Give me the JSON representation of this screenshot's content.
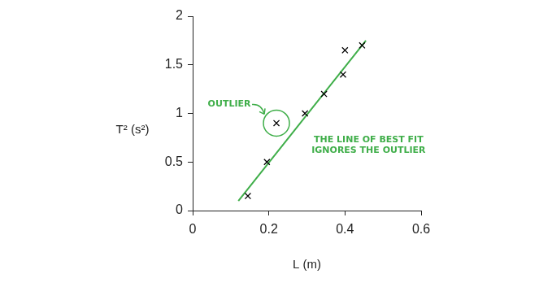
{
  "chart_data": {
    "type": "scatter",
    "x_label": "L (m)",
    "y_label": "T² (s²)",
    "series": [
      {
        "type": "scatter",
        "marker": "x",
        "color": "#000000",
        "x": [
          0.145,
          0.195,
          0.22,
          0.295,
          0.345,
          0.395,
          0.4,
          0.445
        ],
        "values": [
          0.15,
          0.5,
          0.9,
          1.0,
          1.2,
          1.4,
          1.65,
          1.7
        ]
      },
      {
        "type": "line",
        "marker": "none",
        "color": "#3fae49",
        "x": [
          0.12,
          0.455
        ],
        "values": [
          0.1,
          1.75
        ]
      }
    ],
    "xlim": [
      0,
      0.6
    ],
    "xticks": [
      0,
      0.2,
      0.4,
      0.6
    ],
    "ylim": [
      0,
      2
    ],
    "yticks": [
      0,
      0.5,
      1,
      1.5,
      2
    ],
    "grid": false,
    "annotations": [
      {
        "text": "OUTLIER",
        "x": 0.22,
        "y": 0.9,
        "color": "#3fae49"
      },
      {
        "text": [
          "THE LINE OF BEST FIT",
          "IGNORES THE OUTLIER"
        ],
        "color": "#3fae49"
      }
    ]
  }
}
